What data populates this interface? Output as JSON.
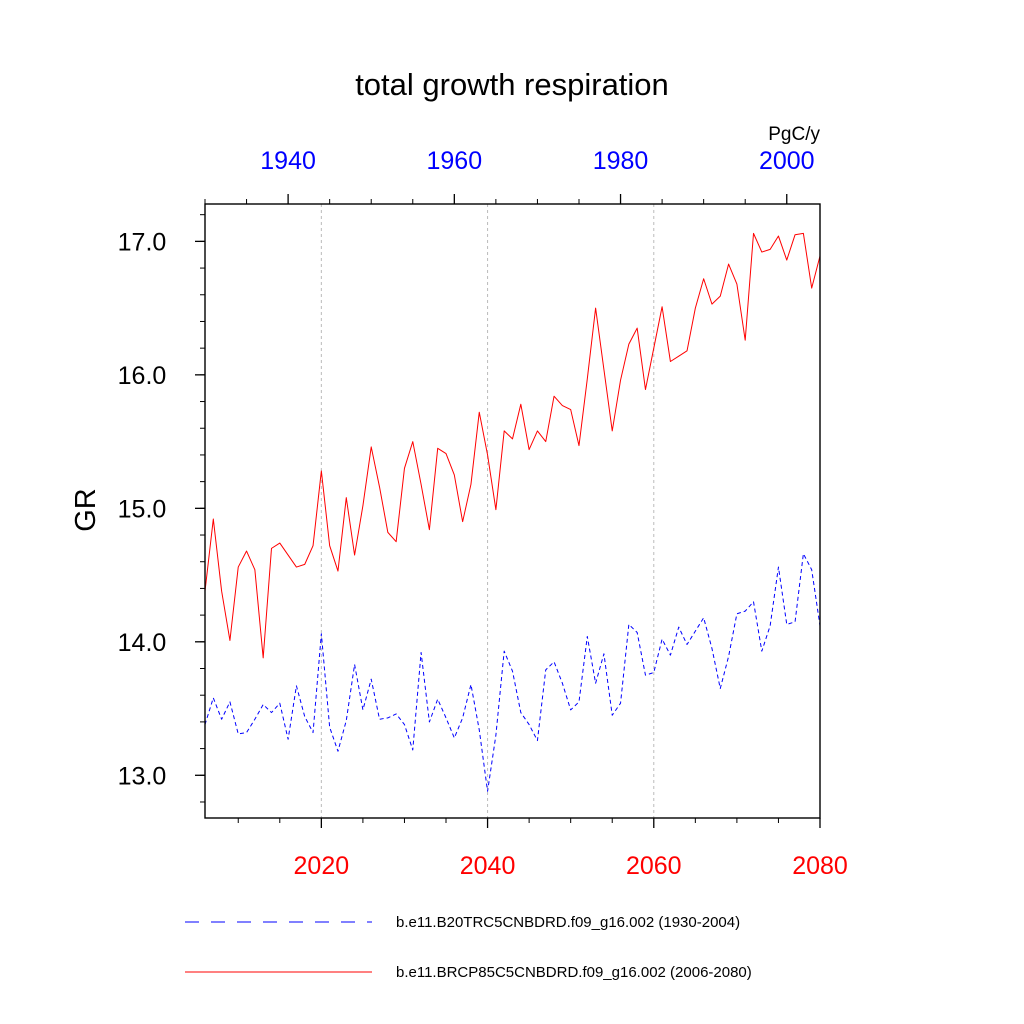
{
  "chart_data": {
    "type": "line",
    "title": "total growth respiration",
    "ylabel": "GR",
    "units_label": "PgC/y",
    "ylim": [
      12.68,
      17.28
    ],
    "y_ticks": [
      13.0,
      14.0,
      15.0,
      16.0,
      17.0
    ],
    "y_tick_labels": [
      "13.0",
      "14.0",
      "15.0",
      "16.0",
      "17.0"
    ],
    "grid": "vertical dashed at bottom-axis labels",
    "bottom_axis": {
      "xlim": [
        2006,
        2080
      ],
      "ticks": [
        2020,
        2040,
        2060,
        2080
      ],
      "tick_labels": [
        "2020",
        "2040",
        "2060",
        "2080"
      ],
      "color": "#ff0000"
    },
    "top_axis": {
      "xlim": [
        1930,
        2004
      ],
      "ticks": [
        1940,
        1960,
        1980,
        2000
      ],
      "tick_labels": [
        "1940",
        "1960",
        "1980",
        "2000"
      ],
      "color": "#0000ff"
    },
    "series": [
      {
        "name": "b.e11.B20TRC5CNBDRD.f09_g16.002 (1930-2004)",
        "color": "#0000ff",
        "dash": "dashed",
        "x_start": 1930,
        "values": [
          13.38,
          13.58,
          13.42,
          13.55,
          13.31,
          13.32,
          13.42,
          13.53,
          13.47,
          13.54,
          13.27,
          13.67,
          13.44,
          13.32,
          14.06,
          13.36,
          13.18,
          13.41,
          13.83,
          13.49,
          13.72,
          13.42,
          13.43,
          13.46,
          13.38,
          13.19,
          13.92,
          13.4,
          13.57,
          13.43,
          13.28,
          13.43,
          13.68,
          13.34,
          12.88,
          13.3,
          13.93,
          13.78,
          13.47,
          13.38,
          13.26,
          13.79,
          13.85,
          13.69,
          13.49,
          13.55,
          14.04,
          13.69,
          13.91,
          13.45,
          13.54,
          14.13,
          14.07,
          13.75,
          13.77,
          14.02,
          13.9,
          14.11,
          13.98,
          14.08,
          14.18,
          13.95,
          13.65,
          13.89,
          14.21,
          14.23,
          14.3,
          13.93,
          14.12,
          14.56,
          14.13,
          14.15,
          14.66,
          14.54,
          14.12
        ]
      },
      {
        "name": "b.e11.BRCP85C5CNBDRD.f09_g16.002 (2006-2080)",
        "color": "#ff0000",
        "dash": "solid",
        "x_start": 2006,
        "values": [
          14.38,
          14.92,
          14.38,
          14.01,
          14.56,
          14.68,
          14.54,
          13.88,
          14.7,
          14.74,
          14.65,
          14.56,
          14.58,
          14.72,
          15.28,
          14.72,
          14.53,
          15.08,
          14.65,
          15.02,
          15.46,
          15.16,
          14.82,
          14.75,
          15.3,
          15.5,
          15.18,
          14.84,
          15.45,
          15.41,
          15.25,
          14.9,
          15.18,
          15.72,
          15.4,
          14.99,
          15.58,
          15.52,
          15.78,
          15.44,
          15.58,
          15.5,
          15.84,
          15.77,
          15.74,
          15.47,
          15.97,
          16.5,
          16.04,
          15.58,
          15.96,
          16.23,
          16.35,
          15.89,
          16.2,
          16.51,
          16.1,
          16.14,
          16.18,
          16.5,
          16.72,
          16.53,
          16.59,
          16.83,
          16.68,
          16.26,
          17.06,
          16.92,
          16.94,
          17.04,
          16.86,
          17.05,
          17.06,
          16.65,
          16.89
        ]
      }
    ],
    "legend": [
      {
        "label": "b.e11.B20TRC5CNBDRD.f09_g16.002 (1930-2004)",
        "color": "#0000ff",
        "dash": "dashed"
      },
      {
        "label": "b.e11.BRCP85C5CNBDRD.f09_g16.002 (2006-2080)",
        "color": "#ff0000",
        "dash": "solid"
      }
    ],
    "legend_position": "bottom"
  }
}
